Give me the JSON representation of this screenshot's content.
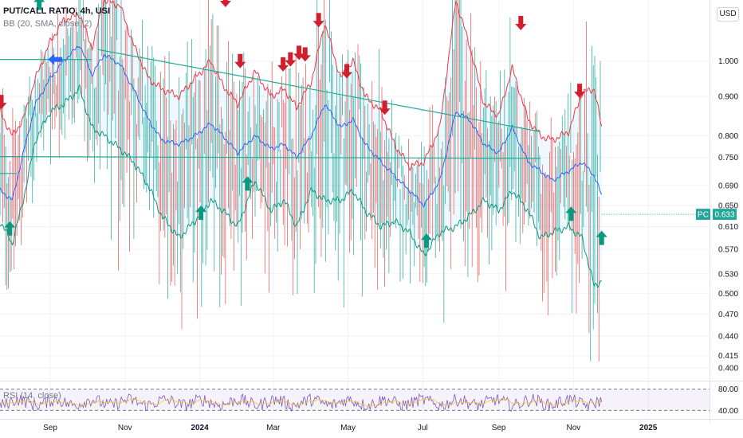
{
  "header": {
    "title": "PUT/CALL RATIO, 4h, USI",
    "indicator": "BB (20, SMA, close, 2)",
    "currency": "USD"
  },
  "rsi_panel": {
    "label": "RSI (14, close)",
    "ticks": [
      "80.00",
      "40.00"
    ],
    "range": [
      30,
      90
    ]
  },
  "price_tag": {
    "symbol": "PC",
    "value": "0.633"
  },
  "colors": {
    "bull": "#26a69a",
    "bear": "#ef5350",
    "bb_upper": "#f23645",
    "bb_basis": "#2962ff",
    "bb_lower": "#089981",
    "bb_fill": "#2196f3",
    "trendline": "#22ab94",
    "up_arrow": "#089981",
    "down_arrow": "#d0202e",
    "blue_arrow": "#2962ff",
    "rsi_line": "#7e57c2"
  },
  "chart_data": {
    "type": "line",
    "y_scale": "log",
    "ylim": [
      0.388,
      1.2
    ],
    "y_ticks": [
      "1.000",
      "0.900",
      "0.800",
      "0.750",
      "0.690",
      "0.650",
      "0.610",
      "0.570",
      "0.530",
      "0.500",
      "0.470",
      "0.440",
      "0.415",
      "0.400"
    ],
    "x_ticks": [
      "Sep",
      "Nov",
      "2024",
      "Mar",
      "May",
      "Jul",
      "Sep",
      "Nov",
      "2025"
    ],
    "x_range": [
      "2023-07-22",
      "2025-02-20"
    ],
    "data_end": "2024-11-24",
    "last_value": 0.633,
    "series": [
      {
        "name": "BB upper",
        "x": [
          "2023-07-22",
          "2023-08-01",
          "2023-08-10",
          "2023-08-20",
          "2023-09-01",
          "2023-09-12",
          "2023-09-25",
          "2023-10-05",
          "2023-10-15",
          "2023-10-28",
          "2023-11-08",
          "2023-11-20",
          "2023-12-01",
          "2023-12-15",
          "2023-12-28",
          "2024-01-10",
          "2024-01-20",
          "2024-02-01",
          "2024-02-15",
          "2024-02-28",
          "2024-03-10",
          "2024-03-20",
          "2024-04-01",
          "2024-04-12",
          "2024-04-25",
          "2024-05-05",
          "2024-05-15",
          "2024-05-28",
          "2024-06-08",
          "2024-06-20",
          "2024-07-02",
          "2024-07-15",
          "2024-07-28",
          "2024-08-08",
          "2024-08-20",
          "2024-09-01",
          "2024-09-12",
          "2024-09-25",
          "2024-10-05",
          "2024-10-15",
          "2024-10-28",
          "2024-11-08",
          "2024-11-18",
          "2024-11-24"
        ],
        "values": [
          0.86,
          0.8,
          0.84,
          0.95,
          1.06,
          1.13,
          1.15,
          1.04,
          1.2,
          1.18,
          1.05,
          0.95,
          0.92,
          0.9,
          0.95,
          1.0,
          0.93,
          0.88,
          0.97,
          0.9,
          0.92,
          0.87,
          0.94,
          1.12,
          0.95,
          1.0,
          0.9,
          0.86,
          0.78,
          0.73,
          0.74,
          0.82,
          1.2,
          1.05,
          0.88,
          0.85,
          0.98,
          0.84,
          0.8,
          0.79,
          0.81,
          0.91,
          0.92,
          0.82
        ]
      },
      {
        "name": "BB basis",
        "x": [
          "2023-07-22",
          "2023-08-01",
          "2023-08-10",
          "2023-08-20",
          "2023-09-01",
          "2023-09-12",
          "2023-09-25",
          "2023-10-05",
          "2023-10-15",
          "2023-10-28",
          "2023-11-08",
          "2023-11-20",
          "2023-12-01",
          "2023-12-15",
          "2023-12-28",
          "2024-01-10",
          "2024-01-20",
          "2024-02-01",
          "2024-02-15",
          "2024-02-28",
          "2024-03-10",
          "2024-03-20",
          "2024-04-01",
          "2024-04-12",
          "2024-04-25",
          "2024-05-05",
          "2024-05-15",
          "2024-05-28",
          "2024-06-08",
          "2024-06-20",
          "2024-07-02",
          "2024-07-15",
          "2024-07-28",
          "2024-08-08",
          "2024-08-20",
          "2024-09-01",
          "2024-09-12",
          "2024-09-25",
          "2024-10-05",
          "2024-10-15",
          "2024-10-28",
          "2024-11-08",
          "2024-11-18",
          "2024-11-24"
        ],
        "values": [
          0.68,
          0.66,
          0.76,
          0.88,
          0.95,
          1.0,
          1.05,
          0.96,
          1.02,
          0.99,
          0.92,
          0.84,
          0.79,
          0.78,
          0.8,
          0.83,
          0.8,
          0.76,
          0.8,
          0.77,
          0.78,
          0.75,
          0.8,
          0.88,
          0.82,
          0.84,
          0.78,
          0.74,
          0.71,
          0.68,
          0.65,
          0.7,
          0.86,
          0.84,
          0.78,
          0.76,
          0.82,
          0.74,
          0.72,
          0.7,
          0.72,
          0.74,
          0.71,
          0.67
        ]
      },
      {
        "name": "BB lower",
        "x": [
          "2023-07-22",
          "2023-08-01",
          "2023-08-10",
          "2023-08-20",
          "2023-09-01",
          "2023-09-12",
          "2023-09-25",
          "2023-10-05",
          "2023-10-15",
          "2023-10-28",
          "2023-11-08",
          "2023-11-20",
          "2023-12-01",
          "2023-12-15",
          "2023-12-28",
          "2024-01-10",
          "2024-01-20",
          "2024-02-01",
          "2024-02-15",
          "2024-02-28",
          "2024-03-10",
          "2024-03-20",
          "2024-04-01",
          "2024-04-12",
          "2024-04-25",
          "2024-05-05",
          "2024-05-15",
          "2024-05-28",
          "2024-06-08",
          "2024-06-20",
          "2024-07-02",
          "2024-07-15",
          "2024-07-28",
          "2024-08-08",
          "2024-08-20",
          "2024-09-01",
          "2024-09-12",
          "2024-09-25",
          "2024-10-05",
          "2024-10-15",
          "2024-10-28",
          "2024-11-08",
          "2024-11-18",
          "2024-11-24"
        ],
        "values": [
          0.62,
          0.58,
          0.66,
          0.79,
          0.86,
          0.88,
          0.92,
          0.82,
          0.8,
          0.77,
          0.74,
          0.69,
          0.63,
          0.59,
          0.62,
          0.66,
          0.64,
          0.61,
          0.7,
          0.64,
          0.66,
          0.61,
          0.68,
          0.66,
          0.66,
          0.68,
          0.64,
          0.61,
          0.62,
          0.6,
          0.56,
          0.6,
          0.61,
          0.63,
          0.66,
          0.64,
          0.68,
          0.64,
          0.59,
          0.6,
          0.61,
          0.59,
          0.51,
          0.52
        ]
      }
    ],
    "trendlines": [
      {
        "from": [
          "2023-10-10",
          1.035
        ],
        "to": [
          "2024-10-05",
          0.81
        ]
      },
      {
        "from": [
          "2023-07-22",
          0.752
        ],
        "to": [
          "2024-10-05",
          0.748
        ]
      },
      {
        "from": [
          "2023-07-22",
          0.715
        ],
        "to": [
          "2023-08-05",
          0.715
        ]
      },
      {
        "from": [
          "2023-07-22",
          1.005
        ],
        "to": [
          "2023-10-05",
          1.005
        ]
      }
    ],
    "signals": [
      {
        "type": "sell",
        "x": "2023-07-23",
        "y": 0.885
      },
      {
        "type": "buy",
        "x": "2023-07-30",
        "y": 0.607
      },
      {
        "type": "buy",
        "x": "2023-08-23",
        "y": 1.19
      },
      {
        "type": "entry",
        "x": "2023-09-05",
        "y": 1.005
      },
      {
        "type": "buy",
        "x": "2024-01-02",
        "y": 0.636
      },
      {
        "type": "sell",
        "x": "2024-01-22",
        "y": 1.2
      },
      {
        "type": "sell",
        "x": "2024-02-03",
        "y": 1.0
      },
      {
        "type": "buy",
        "x": "2024-02-09",
        "y": 0.694
      },
      {
        "type": "sell",
        "x": "2024-03-09",
        "y": 0.99
      },
      {
        "type": "sell",
        "x": "2024-03-15",
        "y": 1.005
      },
      {
        "type": "sell",
        "x": "2024-03-22",
        "y": 1.025
      },
      {
        "type": "sell",
        "x": "2024-03-27",
        "y": 1.02
      },
      {
        "type": "sell",
        "x": "2024-04-07",
        "y": 1.13
      },
      {
        "type": "sell",
        "x": "2024-04-30",
        "y": 0.97
      },
      {
        "type": "sell",
        "x": "2024-05-31",
        "y": 0.87
      },
      {
        "type": "buy",
        "x": "2024-07-04",
        "y": 0.585
      },
      {
        "type": "sell",
        "x": "2024-09-19",
        "y": 1.12
      },
      {
        "type": "buy",
        "x": "2024-10-30",
        "y": 0.634
      },
      {
        "type": "sell",
        "x": "2024-11-06",
        "y": 0.915
      },
      {
        "type": "buy",
        "x": "2024-11-24",
        "y": 0.59
      }
    ]
  }
}
